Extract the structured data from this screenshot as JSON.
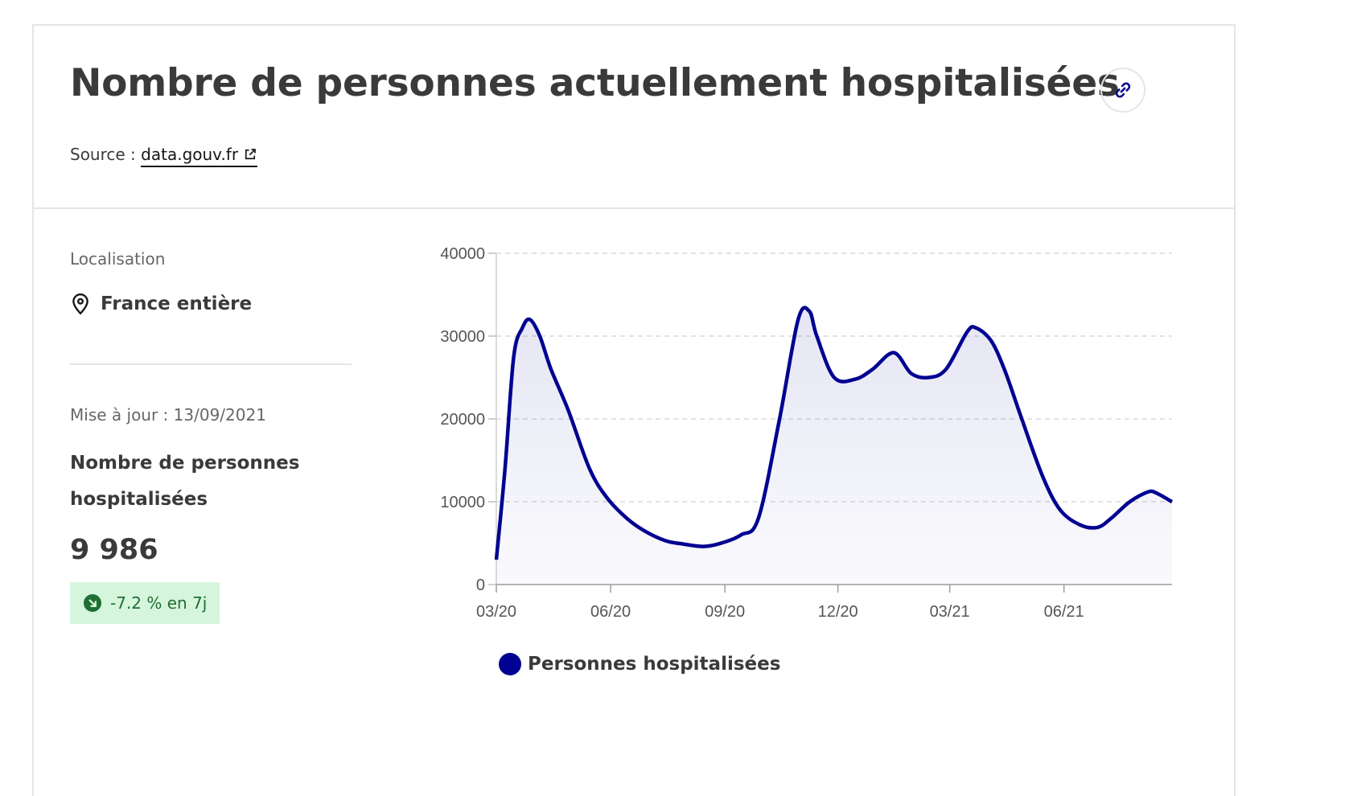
{
  "header": {
    "title": "Nombre de personnes actuellement hospitalisées",
    "source_prefix": "Source :",
    "source_link": "data.gouv.fr"
  },
  "sidebar": {
    "location_label": "Localisation",
    "location_value": "France entière",
    "update_text": "Mise à jour : 13/09/2021",
    "metric_label": "Nombre de personnes hospitalisées",
    "metric_value": "9 986",
    "trend_text": "-7.2 % en 7j"
  },
  "colors": {
    "series": "#000091",
    "trend_bg": "#d6f5dd",
    "trend_fg": "#1f6e33",
    "border": "#e5e5e5"
  },
  "icons": {
    "link": "link-icon",
    "external": "external-link-icon",
    "location": "map-pin-icon",
    "trend": "arrow-down-right-icon"
  },
  "chart_data": {
    "type": "area",
    "title": "",
    "xlabel": "",
    "ylabel": "",
    "x_ticks": [
      "03/20",
      "06/20",
      "09/20",
      "12/20",
      "03/21",
      "06/21"
    ],
    "y_ticks": [
      "0",
      "10000",
      "20000",
      "30000",
      "40000"
    ],
    "ylim": [
      0,
      40000
    ],
    "x_range_months": [
      "2020-03-18",
      "2021-09-13"
    ],
    "grid": "horizontal dashed",
    "legend_position": "bottom-center",
    "series": [
      {
        "name": "Personnes hospitalisées",
        "x": [
          "2020-03-18",
          "2020-03-25",
          "2020-04-01",
          "2020-04-08",
          "2020-04-14",
          "2020-04-22",
          "2020-05-01",
          "2020-05-15",
          "2020-06-01",
          "2020-06-15",
          "2020-07-01",
          "2020-07-15",
          "2020-08-01",
          "2020-08-15",
          "2020-09-01",
          "2020-09-15",
          "2020-10-01",
          "2020-10-15",
          "2020-11-01",
          "2020-11-16",
          "2020-11-25",
          "2020-12-01",
          "2020-12-15",
          "2021-01-01",
          "2021-01-15",
          "2021-02-01",
          "2021-02-15",
          "2021-03-01",
          "2021-03-15",
          "2021-04-01",
          "2021-04-08",
          "2021-04-20",
          "2021-05-01",
          "2021-05-15",
          "2021-06-01",
          "2021-06-15",
          "2021-07-01",
          "2021-07-15",
          "2021-07-26",
          "2021-08-10",
          "2021-08-25",
          "2021-09-01",
          "2021-09-13"
        ],
        "values": [
          3000,
          14000,
          27500,
          31000,
          32000,
          30000,
          26000,
          21000,
          14000,
          10500,
          8000,
          6500,
          5300,
          4900,
          4600,
          5000,
          6000,
          8000,
          20000,
          32000,
          33000,
          30000,
          25000,
          24800,
          26000,
          28000,
          25500,
          25000,
          26000,
          30500,
          31000,
          29500,
          26000,
          20000,
          13000,
          9000,
          7200,
          6900,
          8000,
          10000,
          11200,
          11000,
          9986
        ]
      }
    ]
  }
}
